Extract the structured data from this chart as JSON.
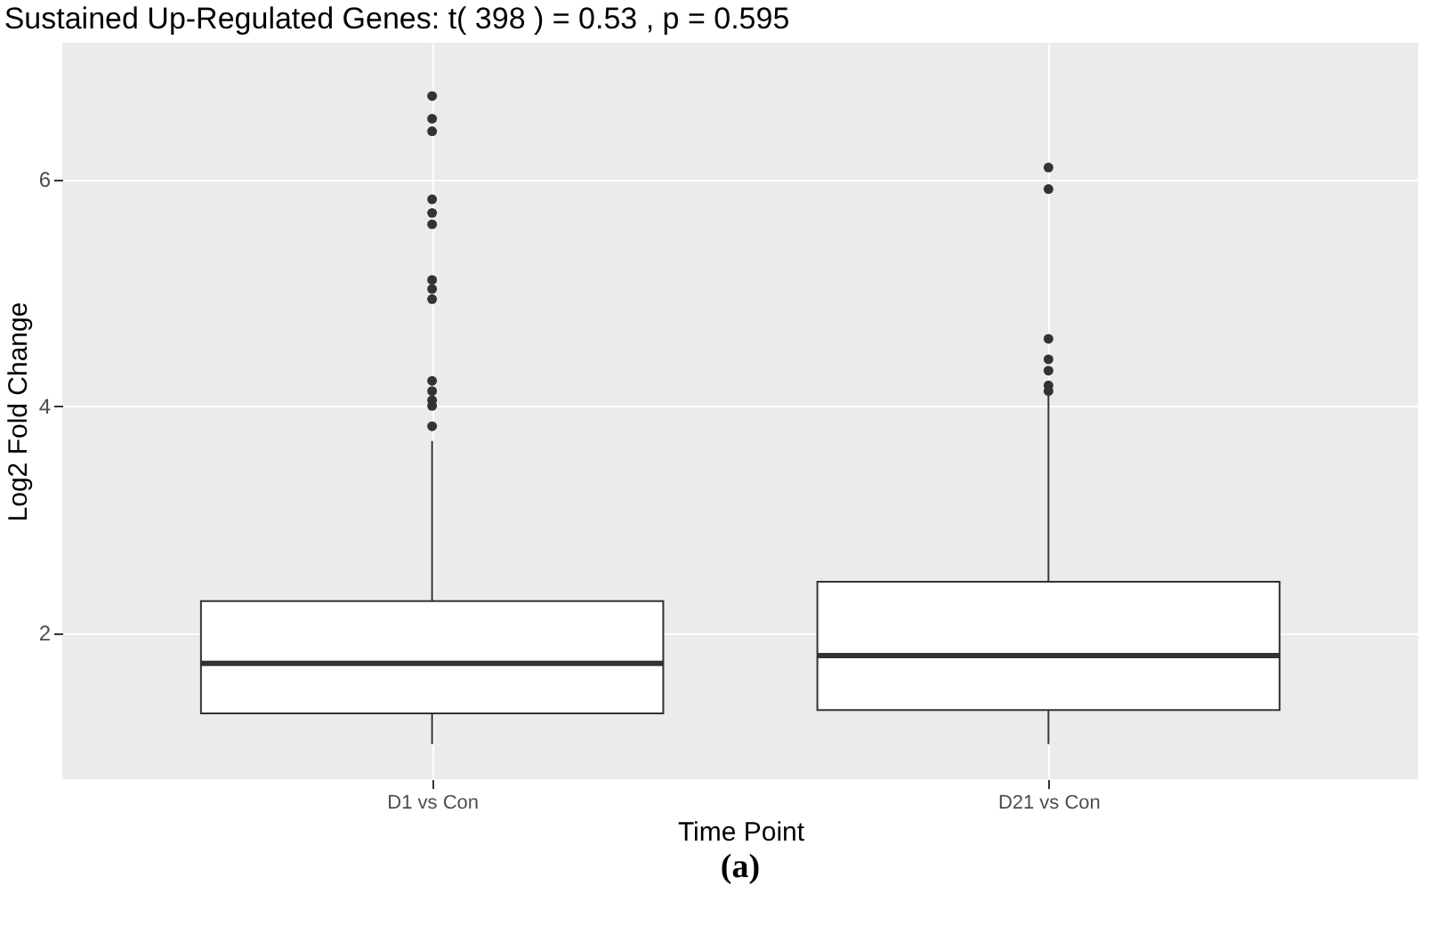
{
  "chart_data": {
    "type": "box",
    "title": "Sustained Up-Regulated Genes: t( 398 ) =  0.53 , p = 0.595",
    "xlabel": "Time Point",
    "ylabel": "Log2 Fold Change",
    "categories": [
      "D1 vs Con",
      "D21 vs Con"
    ],
    "boxes": [
      {
        "low": 1.02,
        "q1": 1.29,
        "median": 1.73,
        "q3": 2.28,
        "high": 3.69,
        "outliers": [
          3.82,
          4.0,
          4.05,
          4.13,
          4.22,
          4.94,
          5.03,
          5.11,
          5.6,
          5.7,
          5.82,
          6.42,
          6.53,
          6.73
        ]
      },
      {
        "low": 1.02,
        "q1": 1.32,
        "median": 1.8,
        "q3": 2.45,
        "high": 4.1,
        "outliers": [
          4.13,
          4.18,
          4.31,
          4.41,
          4.59,
          5.91,
          6.1
        ]
      }
    ],
    "ylim": [
      0.71,
      7.2
    ],
    "yticks": [
      2,
      4,
      6
    ],
    "grid": true,
    "annotations": [
      "(a)"
    ]
  }
}
